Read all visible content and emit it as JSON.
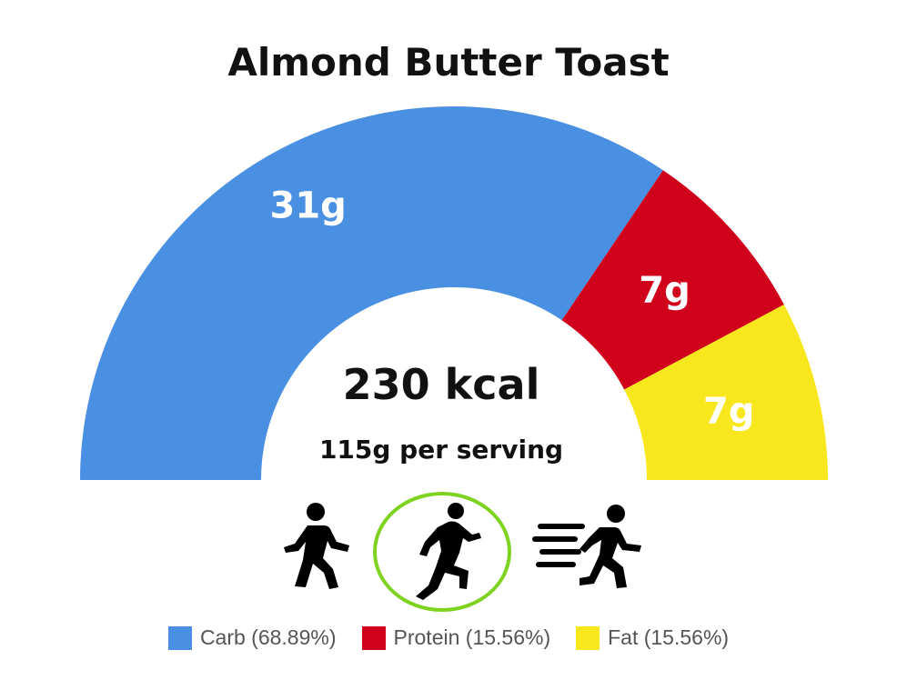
{
  "chart_data": {
    "type": "pie",
    "variant": "semi-donut",
    "title": "Almond Butter Toast",
    "categories": [
      "Carb",
      "Protein",
      "Fat"
    ],
    "values": [
      31,
      7,
      7
    ],
    "value_labels": [
      "31g",
      "7g",
      "7g"
    ],
    "percentages": [
      68.89,
      15.56,
      15.56
    ],
    "legend_labels": [
      "Carb (68.89%)",
      "Protein (15.56%)",
      "Fat (15.56%)"
    ],
    "colors": [
      "#4a90e2",
      "#d0021b",
      "#f8e71c"
    ],
    "legend_position": "bottom"
  },
  "center": {
    "calories": "230 kcal",
    "serving": "115g per serving"
  },
  "activities": [
    {
      "icon": "walking-person-icon",
      "selected": false
    },
    {
      "icon": "running-person-icon",
      "selected": true
    },
    {
      "icon": "sprinting-person-icon",
      "selected": false
    }
  ],
  "selection_ring_color": "#7ed321"
}
